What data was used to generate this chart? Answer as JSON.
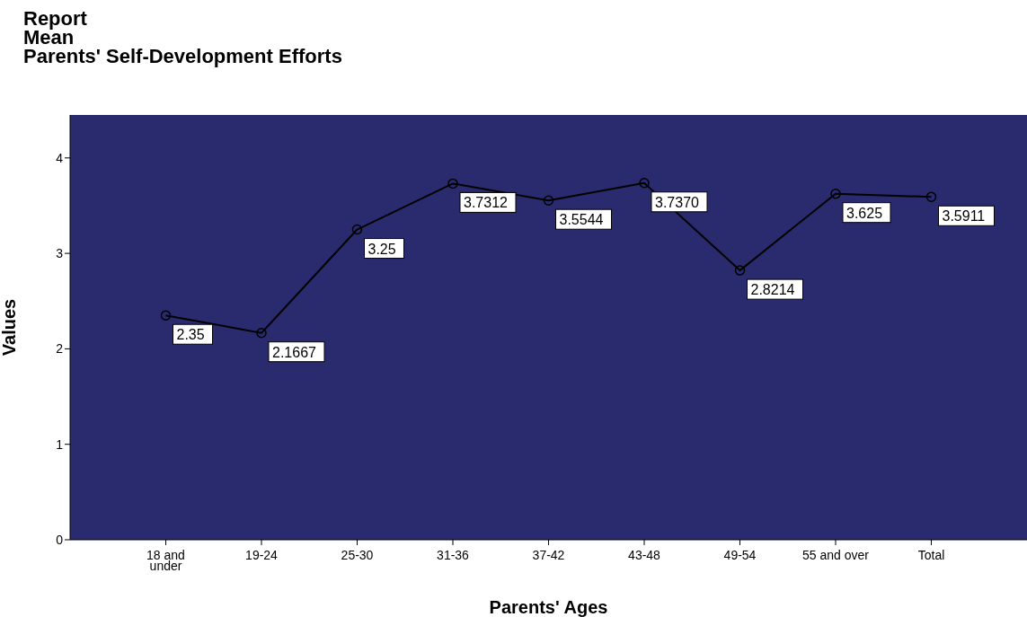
{
  "chart_data": {
    "type": "line",
    "title": "Report\nMean\nParents' Self-Development Efforts",
    "xlabel": "Parents' Ages",
    "ylabel": "Values",
    "categories": [
      "18 and under",
      "19-24",
      "25-30",
      "31-36",
      "37-42",
      "43-48",
      "49-54",
      "55 and over",
      "Total"
    ],
    "series": [
      {
        "color": "#000000",
        "values": [
          2.35,
          2.1667,
          3.25,
          3.7312,
          3.5544,
          3.737,
          2.8214,
          3.625,
          3.5911
        ],
        "value_labels": [
          "2.35",
          "2.1667",
          "3.25",
          "3.7312",
          "3.5544",
          "3.7370",
          "2.8214",
          "3.625",
          "3.5911"
        ]
      }
    ],
    "ylim": [
      0,
      4.45
    ],
    "yticks": [
      0,
      1,
      2,
      3,
      4
    ],
    "grid": false,
    "marker": "circle",
    "line_style": "solid"
  }
}
